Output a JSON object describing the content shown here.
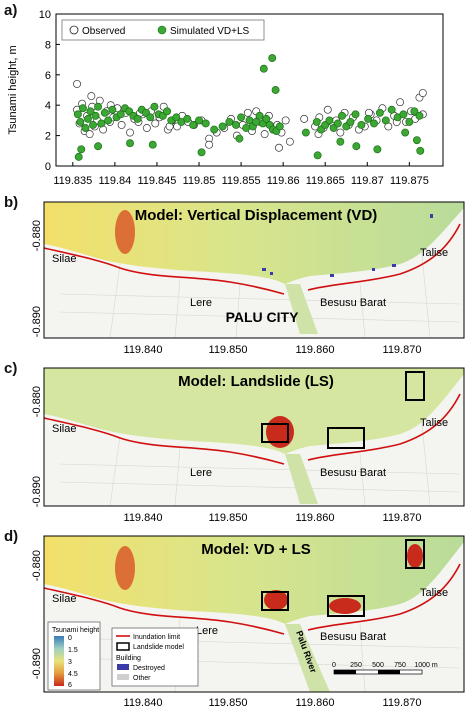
{
  "panels": {
    "a": {
      "label": "a)",
      "legend": {
        "observed": "Observed",
        "simulated": "Simulated VD+LS"
      },
      "ylabel": "Tsunami height, m"
    },
    "b": {
      "label": "b)",
      "title": "Model: Vertical Displacement (VD)"
    },
    "c": {
      "label": "c)",
      "title": "Model: Landslide (LS)"
    },
    "d": {
      "label": "d)",
      "title": "Model: VD + LS"
    }
  },
  "map_lat_ticks": [
    "-0.880",
    "-0.890"
  ],
  "map_lon_ticks": [
    "119.840",
    "119.850",
    "119.860",
    "119.870"
  ],
  "places": {
    "silae": "Silae",
    "talise": "Talise",
    "lere": "Lere",
    "besusu": "Besusu Barat",
    "palu_city": "PALU CITY",
    "palu_river": "Palu River"
  },
  "map_legend": {
    "title": "Tsunami height",
    "ticks": [
      "0",
      "1.5",
      "3",
      "4.5",
      "6"
    ],
    "inundation": "Inundation limit",
    "landslide": "Landslide model",
    "building": "Building",
    "destroyed": "Destroyed",
    "other": "Other"
  },
  "scalebar": [
    "0",
    "250",
    "500",
    "750",
    "1000 m"
  ],
  "colors": {
    "observed": "#ffffff",
    "simulated": "#3aa832",
    "inundation": "#d01010",
    "destroyed": "#3a3aa8"
  },
  "chart_data": {
    "type": "scatter",
    "xlim": [
      119.833,
      119.879
    ],
    "ylim": [
      0,
      10
    ],
    "xticks": [
      119.835,
      119.84,
      119.845,
      119.85,
      119.855,
      119.86,
      119.865,
      119.87,
      119.875
    ],
    "yticks": [
      0,
      2,
      4,
      6,
      8,
      10
    ],
    "ylabel": "Tsunami height, m",
    "series": [
      {
        "name": "Observed",
        "x": [
          119.8355,
          119.8358,
          119.8361,
          119.8364,
          119.8367,
          119.837,
          119.8373,
          119.8376,
          119.8379,
          119.8382,
          119.8386,
          119.839,
          119.8394,
          119.8398,
          119.8403,
          119.8408,
          119.8413,
          119.8418,
          119.8423,
          119.8428,
          119.8433,
          119.8438,
          119.8443,
          119.8448,
          119.8453,
          119.8458,
          119.8463,
          119.8468,
          119.8474,
          119.848,
          119.8487,
          119.8494,
          119.8503,
          119.8512,
          119.8521,
          119.853,
          119.8538,
          119.8545,
          119.8552,
          119.8558,
          119.8563,
          119.8568,
          119.8573,
          119.8578,
          119.8583,
          119.8588,
          119.8593,
          119.8598,
          119.8603,
          119.8608,
          119.8625,
          119.8638,
          119.8643,
          119.8648,
          119.8653,
          119.8658,
          119.8663,
          119.8668,
          119.8673,
          119.8678,
          119.8683,
          119.869,
          119.8697,
          119.8704,
          119.8711,
          119.8718,
          119.8725,
          119.8732,
          119.8739,
          119.8746,
          119.8752,
          119.8757,
          119.8762,
          119.8766,
          119.8355,
          119.8372,
          119.8395,
          119.843,
          119.8465,
          119.8512,
          119.8572,
          119.8595,
          119.8642,
          119.8702,
          119.8735,
          119.8766
        ],
        "y": [
          3.7,
          2.8,
          4.1,
          2.3,
          3.3,
          2.1,
          3.9,
          2.6,
          3.0,
          4.3,
          2.4,
          3.6,
          2.9,
          3.2,
          3.8,
          2.7,
          3.5,
          2.2,
          3.1,
          2.9,
          3.4,
          2.5,
          3.6,
          2.8,
          3.2,
          3.9,
          2.4,
          3.0,
          2.6,
          3.3,
          2.9,
          2.7,
          3.0,
          1.8,
          2.2,
          2.5,
          3.1,
          2.0,
          2.7,
          3.5,
          2.3,
          3.6,
          2.9,
          2.1,
          3.3,
          2.4,
          2.7,
          2.2,
          3.0,
          1.6,
          3.1,
          2.6,
          3.2,
          2.5,
          3.7,
          2.9,
          3.0,
          2.2,
          3.5,
          2.7,
          3.2,
          2.4,
          2.6,
          3.4,
          3.0,
          3.8,
          2.6,
          3.3,
          4.2,
          2.9,
          3.6,
          3.1,
          4.5,
          3.4,
          5.4,
          4.6,
          4.0,
          3.5,
          2.6,
          1.4,
          3.2,
          1.2,
          2.1,
          3.5,
          2.9,
          4.8
        ]
      },
      {
        "name": "Simulated VD+LS",
        "x": [
          119.8356,
          119.8359,
          119.8362,
          119.8365,
          119.8368,
          119.8371,
          119.8374,
          119.8377,
          119.838,
          119.8384,
          119.8388,
          119.8392,
          119.8397,
          119.8402,
          119.8407,
          119.8412,
          119.8417,
          119.8422,
          119.8427,
          119.8432,
          119.8437,
          119.8442,
          119.8447,
          119.8452,
          119.8457,
          119.8462,
          119.8467,
          119.8473,
          119.8479,
          119.8486,
          119.8493,
          119.85,
          119.8508,
          119.8518,
          119.8528,
          119.8536,
          119.8544,
          119.855,
          119.8556,
          119.856,
          119.8564,
          119.8568,
          119.8572,
          119.8576,
          119.858,
          119.8584,
          119.8588,
          119.8592,
          119.8596,
          119.8627,
          119.864,
          119.8645,
          119.865,
          119.8655,
          119.866,
          119.8665,
          119.867,
          119.8675,
          119.868,
          119.8686,
          119.8693,
          119.8701,
          119.8708,
          119.8715,
          119.8722,
          119.8729,
          119.8736,
          119.8743,
          119.875,
          119.8756,
          119.8762,
          119.8357,
          119.836,
          119.838,
          119.8418,
          119.8445,
          119.8503,
          119.8548,
          119.8577,
          119.8587,
          119.8591,
          119.8641,
          119.8668,
          119.8687,
          119.8712,
          119.8745,
          119.8759,
          119.8763
        ],
        "y": [
          3.4,
          2.9,
          3.8,
          2.5,
          3.1,
          3.6,
          2.7,
          3.3,
          3.9,
          2.8,
          3.5,
          3.0,
          3.7,
          3.2,
          3.4,
          3.8,
          3.6,
          3.3,
          3.1,
          3.7,
          3.5,
          3.2,
          3.9,
          3.4,
          3.3,
          3.6,
          3.0,
          3.2,
          2.9,
          3.1,
          2.7,
          3.0,
          2.8,
          2.4,
          2.6,
          2.9,
          2.7,
          3.2,
          2.5,
          3.0,
          2.6,
          2.9,
          3.3,
          2.8,
          3.1,
          2.7,
          2.4,
          2.3,
          2.6,
          2.2,
          2.9,
          2.4,
          2.7,
          3.0,
          2.5,
          2.8,
          3.3,
          2.6,
          2.9,
          3.4,
          2.7,
          3.1,
          2.8,
          3.5,
          3.0,
          3.7,
          3.2,
          3.4,
          2.9,
          3.6,
          3.3,
          0.6,
          1.1,
          1.3,
          1.5,
          1.4,
          0.9,
          1.8,
          6.4,
          7.1,
          5.0,
          0.7,
          1.6,
          1.3,
          1.1,
          2.2,
          1.7,
          1.0
        ]
      }
    ]
  }
}
